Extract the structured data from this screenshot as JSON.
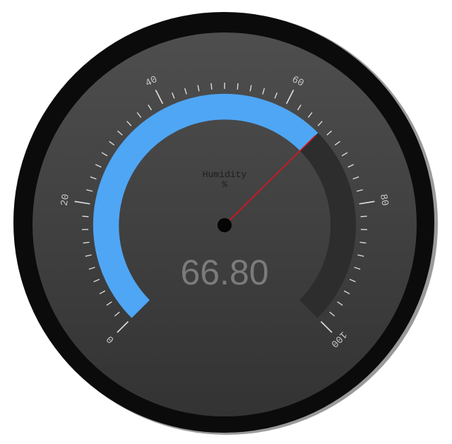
{
  "chart_data": {
    "type": "gauge",
    "title": "Humidity",
    "unit": "%",
    "min": 0,
    "max": 100,
    "value": 66.8,
    "value_label": "66.80",
    "major_ticks": [
      0,
      20,
      40,
      60,
      80,
      100
    ],
    "tick_labels": [
      "0",
      "20",
      "40",
      "60",
      "80",
      "100"
    ],
    "minor_tick_step": 2
  },
  "colors": {
    "bezel": "#0b0b0b",
    "value_arc": "#4fa6f4",
    "track_arc": "#2d2d2d",
    "needle": "#e3111b",
    "pivot": "#050505",
    "tick": "#dadada",
    "tick_label": "#c9c9c9",
    "title_text": "#1e1e1e",
    "readout_text": "#7b7b7b"
  }
}
